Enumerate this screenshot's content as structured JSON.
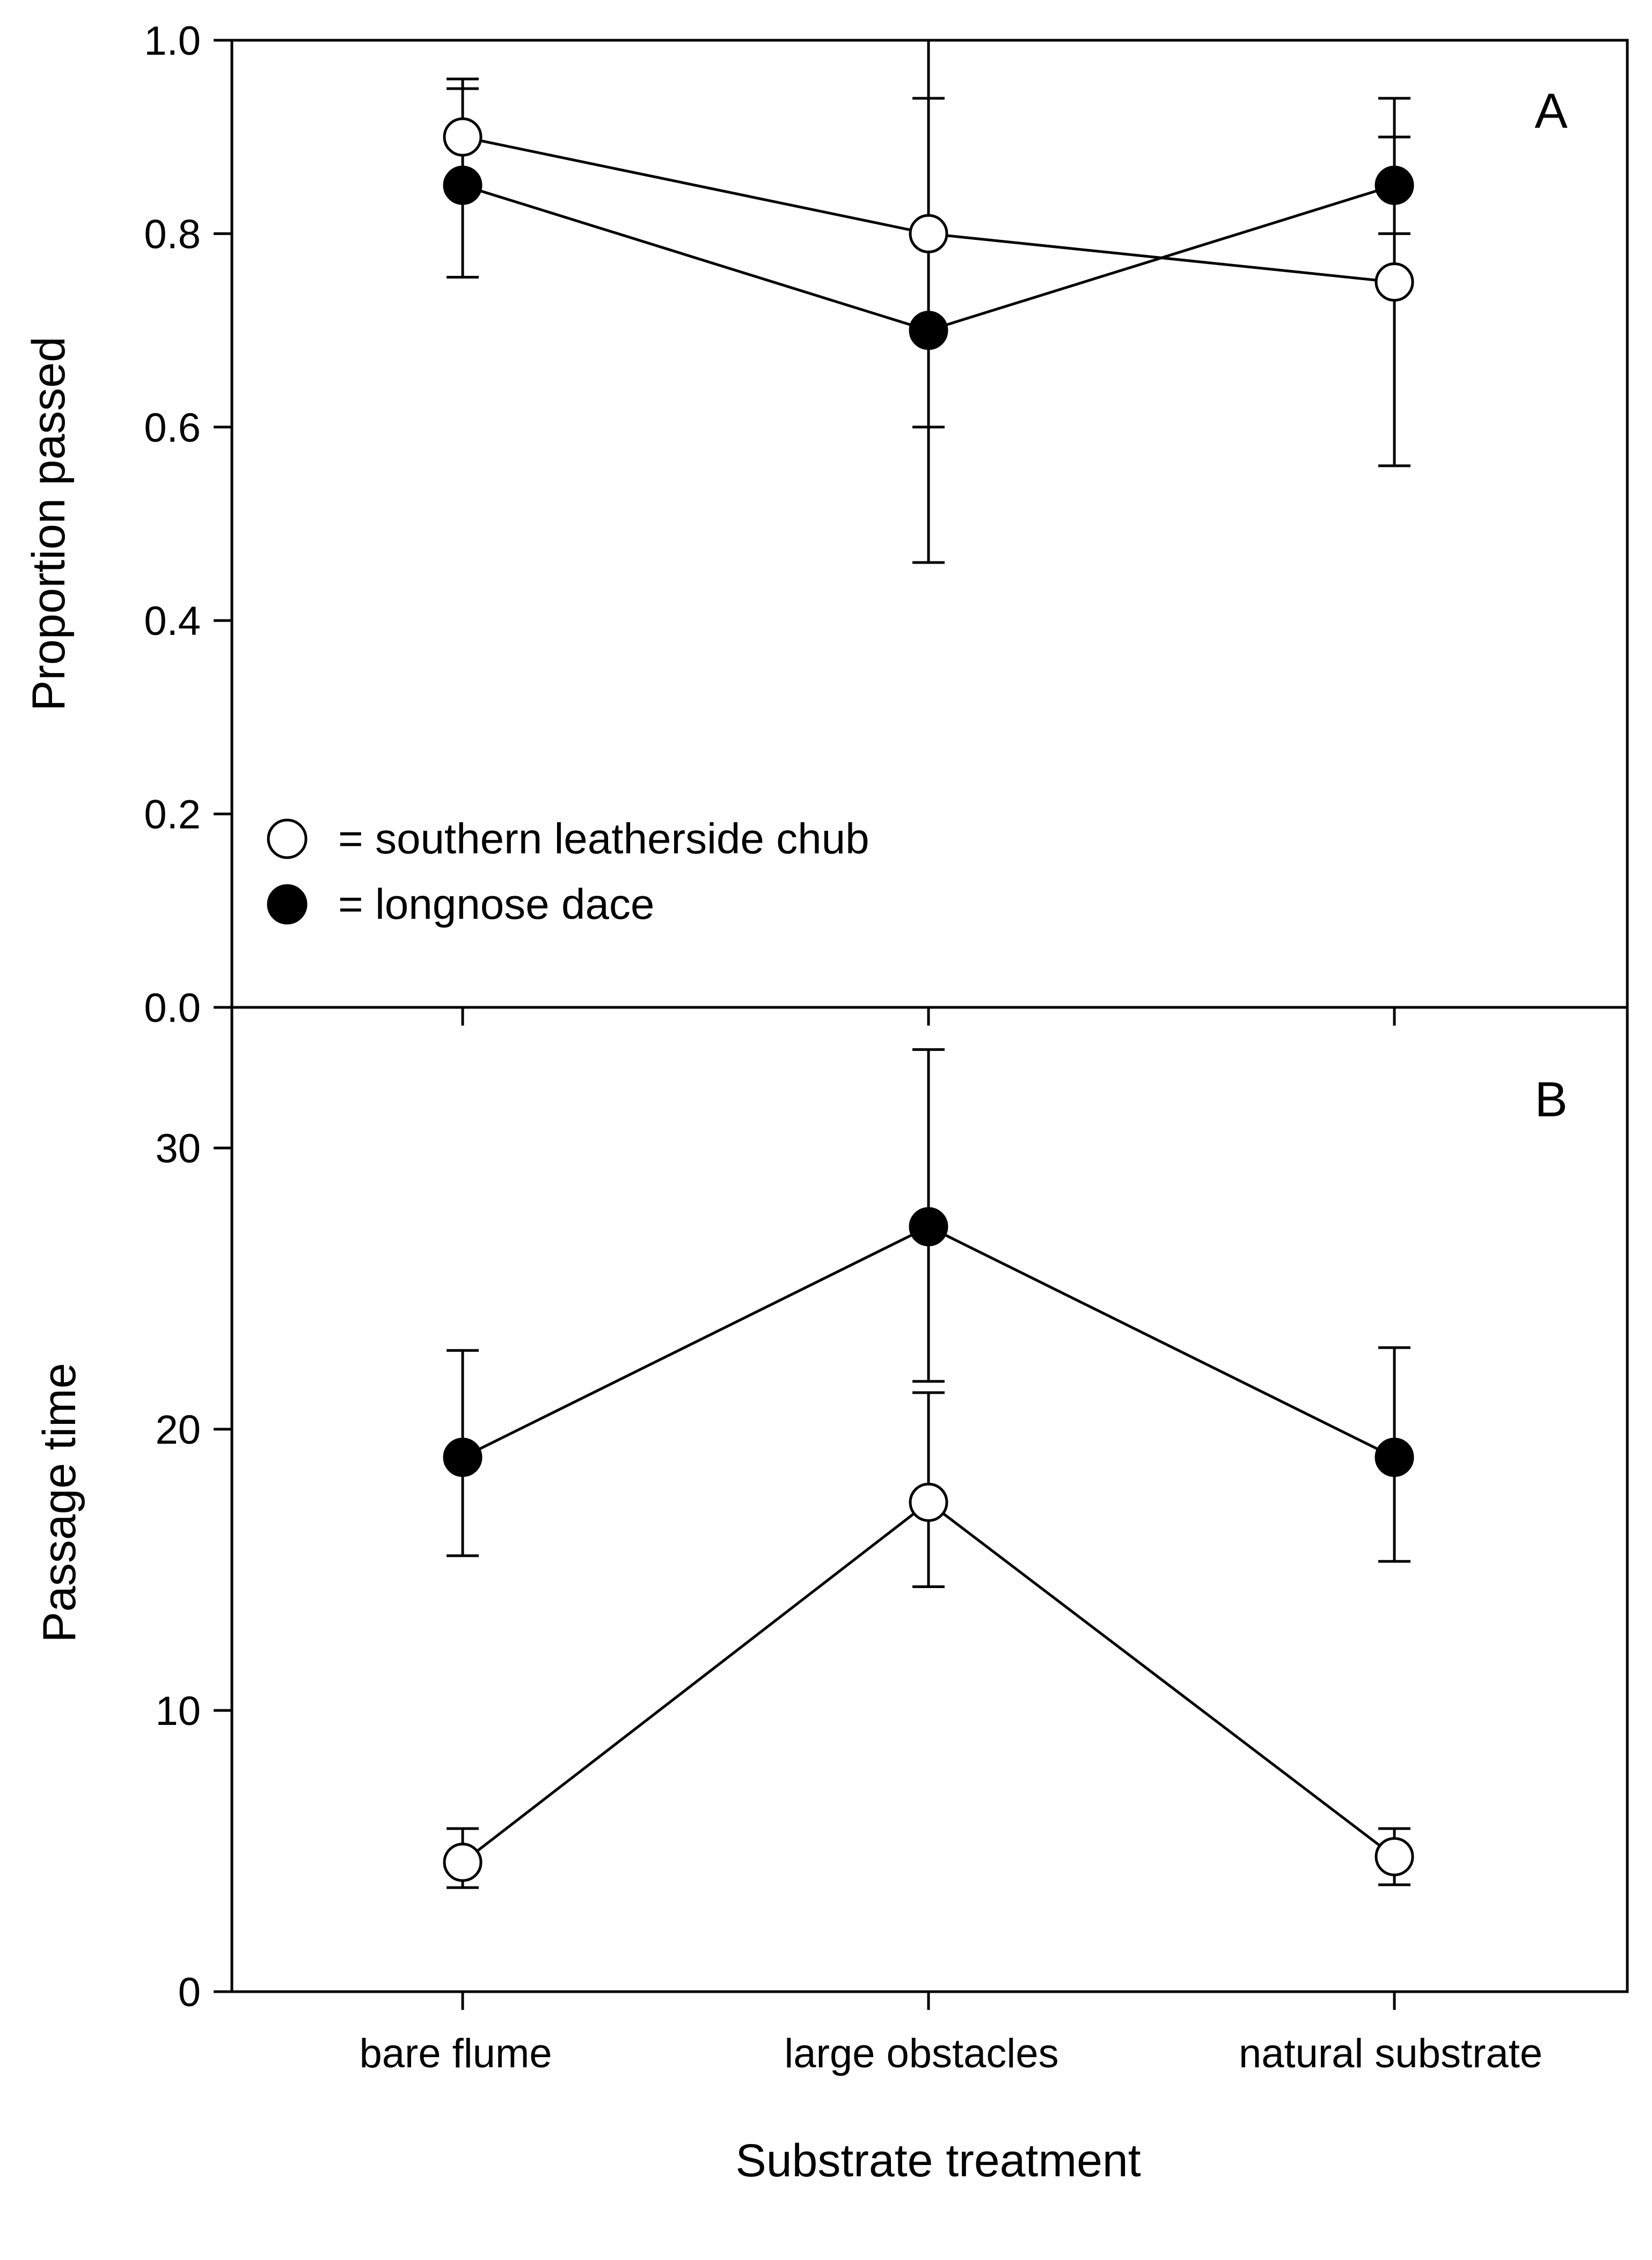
{
  "xlabel": "Substrate treatment",
  "categories": [
    "bare flume",
    "large obstacles",
    "natural substrate"
  ],
  "legend": [
    {
      "label": "= southern leatherside chub",
      "marker": "open-circle"
    },
    {
      "label": "= longnose dace",
      "marker": "filled-circle"
    }
  ],
  "colors": {
    "line": "#000000",
    "open_fill": "#ffffff",
    "filled_fill": "#000000"
  },
  "chart_data": [
    {
      "type": "line",
      "panel": "A",
      "ylabel": "Proportion passed",
      "ylim": [
        0,
        1
      ],
      "yticks": [
        "0.0",
        "0.2",
        "0.4",
        "0.6",
        "0.8",
        "1.0"
      ],
      "ytick_values": [
        0,
        0.2,
        0.4,
        0.6,
        0.8,
        1.0
      ],
      "categories": [
        "bare flume",
        "large obstacles",
        "natural substrate"
      ],
      "series": [
        {
          "name": "southern leatherside chub",
          "marker": "open",
          "values": [
            0.9,
            0.8,
            0.75
          ],
          "err_low": [
            0.85,
            0.6,
            0.56
          ],
          "err_high": [
            0.96,
            1.0,
            0.9
          ]
        },
        {
          "name": "longnose dace",
          "marker": "filled",
          "values": [
            0.85,
            0.7,
            0.85
          ],
          "err_low": [
            0.755,
            0.46,
            0.8
          ],
          "err_high": [
            0.95,
            0.94,
            0.94
          ]
        }
      ]
    },
    {
      "type": "line",
      "panel": "B",
      "ylabel": "Passage time",
      "ylim": [
        0,
        35
      ],
      "yticks": [
        "0",
        "10",
        "20",
        "30"
      ],
      "ytick_values": [
        0,
        10,
        20,
        30
      ],
      "categories": [
        "bare flume",
        "large obstacles",
        "natural substrate"
      ],
      "series": [
        {
          "name": "southern leatherside chub",
          "marker": "open",
          "values": [
            4.6,
            17.4,
            4.8
          ],
          "err_low": [
            3.7,
            14.4,
            3.8
          ],
          "err_high": [
            5.8,
            21.3,
            5.8
          ]
        },
        {
          "name": "longnose dace",
          "marker": "filled",
          "values": [
            19.0,
            27.2,
            19.0
          ],
          "err_low": [
            15.5,
            21.7,
            15.3
          ],
          "err_high": [
            22.8,
            33.5,
            22.9
          ]
        }
      ]
    }
  ]
}
